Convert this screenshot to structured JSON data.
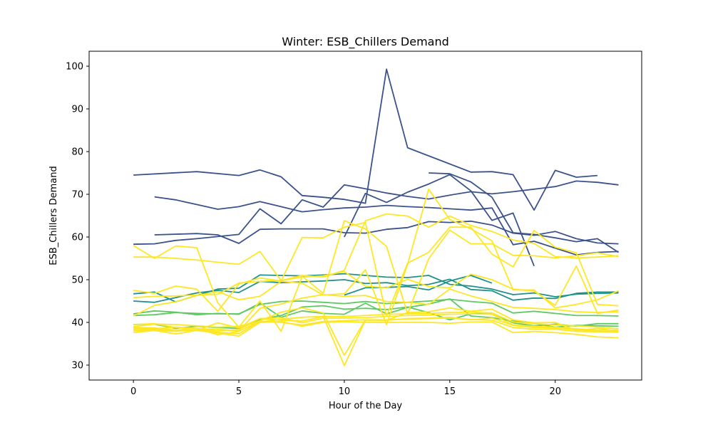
{
  "chart_data": {
    "type": "line",
    "title": "Winter: ESB_Chillers Demand",
    "xlabel": "Hour of the Day",
    "ylabel": "ESB_Chillers Demand",
    "xlim": [
      -2.1,
      24.1
    ],
    "ylim": [
      26.5,
      103.5
    ],
    "xticks": [
      0,
      5,
      10,
      15,
      20
    ],
    "yticks": [
      30,
      40,
      50,
      60,
      70,
      80,
      90,
      100
    ],
    "grid": false,
    "legend": "none",
    "series": [
      {
        "color": "#3b528b",
        "x": [
          0,
          3,
          5,
          6,
          7,
          8,
          9,
          10,
          11,
          12,
          13,
          14,
          15,
          16,
          17,
          18,
          19,
          20,
          21,
          22
        ],
        "values": [
          74.5,
          75.3,
          74.4,
          75.7,
          74.1,
          69.7,
          69.3,
          68.8,
          67.9,
          99.3,
          80.9,
          79.0,
          77.1,
          75.2,
          75.3,
          74.6,
          66.3,
          75.6,
          74.0,
          74.4
        ]
      },
      {
        "color": "#3b528b",
        "x": [
          1,
          2,
          3,
          4,
          5,
          6,
          7,
          8,
          9,
          10,
          11,
          12,
          13,
          14,
          15,
          16,
          17,
          18,
          19,
          20,
          21,
          22,
          23
        ],
        "values": [
          69.4,
          68.7,
          67.6,
          66.5,
          67.1,
          68.3,
          67.1,
          65.9,
          66.4,
          66.8,
          67.0,
          67.4,
          67.1,
          66.9,
          66.6,
          66.3,
          66.8,
          58.2,
          59.0,
          57.4,
          55.8,
          56.4,
          56.6
        ]
      },
      {
        "color": "#3b528b",
        "x": [
          0,
          1,
          2,
          3,
          4,
          5,
          6,
          7,
          8,
          9,
          10,
          11,
          12,
          13,
          14,
          15,
          16,
          17,
          18,
          19,
          20,
          21,
          22,
          23
        ],
        "values": [
          58.3,
          58.4,
          59.2,
          59.6,
          60.1,
          60.6,
          66.6,
          63.1,
          68.7,
          67.0,
          72.2,
          71.3,
          70.3,
          69.5,
          68.9,
          69.8,
          70.6,
          70.1,
          70.6,
          71.2,
          71.8,
          73.1,
          72.8,
          72.2
        ]
      },
      {
        "color": "#3b528b",
        "x": [
          1,
          3,
          4,
          5,
          6,
          7,
          8,
          9,
          10,
          11,
          12,
          13,
          14,
          15,
          16,
          17,
          18,
          19,
          20,
          21,
          22,
          23
        ],
        "values": [
          60.5,
          60.8,
          60.5,
          58.5,
          61.8,
          61.9,
          61.9,
          61.9,
          61.0,
          60.9,
          61.8,
          62.2,
          63.6,
          63.4,
          63.7,
          62.8,
          60.9,
          60.4,
          61.3,
          59.6,
          58.6,
          58.4
        ]
      },
      {
        "color": "#3b528b",
        "x": [
          10,
          11,
          12,
          13,
          14,
          15,
          16,
          17,
          18,
          19
        ],
        "values": [
          60.0,
          70.2,
          68.1,
          70.5,
          72.4,
          74.6,
          70.8,
          63.9,
          65.6,
          53.2
        ]
      },
      {
        "color": "#3b528b",
        "x": [
          14,
          15,
          16,
          17,
          18,
          19,
          20,
          21,
          22,
          23
        ],
        "values": [
          75.0,
          74.8,
          72.9,
          69.3,
          61.0,
          60.6,
          59.8,
          58.9,
          59.6,
          56.4
        ]
      },
      {
        "color": "#21918c",
        "x": [
          0,
          1,
          2,
          3,
          4,
          5,
          6,
          7,
          8,
          9,
          10,
          11,
          12,
          13,
          14,
          15,
          16,
          17,
          18,
          19,
          20,
          21,
          22,
          23
        ],
        "values": [
          46.7,
          47.1,
          44.8,
          46.3,
          47.8,
          48.0,
          51.1,
          51.0,
          50.9,
          51.1,
          51.4,
          51.0,
          50.6,
          50.5,
          51.0,
          48.9,
          48.5,
          47.8,
          46.5,
          46.9,
          46.0,
          46.6,
          46.8,
          46.9
        ]
      },
      {
        "color": "#21918c",
        "x": [
          0,
          1,
          2,
          3,
          4,
          5,
          6,
          7,
          8,
          9,
          10,
          11,
          12,
          13,
          14,
          15,
          16,
          17,
          18,
          19,
          20,
          21,
          22,
          23
        ],
        "values": [
          45.0,
          44.7,
          45.8,
          46.9,
          47.5,
          47.0,
          49.6,
          49.3,
          49.5,
          49.7,
          50.0,
          49.1,
          49.3,
          48.6,
          48.9,
          50.1,
          47.7,
          47.4,
          45.2,
          45.7,
          45.6,
          46.8,
          47.1,
          47.1
        ]
      },
      {
        "color": "#21918c",
        "x": [
          10,
          11,
          12,
          13,
          14,
          15,
          16,
          17
        ],
        "values": [
          46.4,
          48.1,
          48.2,
          48.4,
          47.6,
          49.7,
          51.0,
          49.2
        ]
      },
      {
        "color": "#5ec962",
        "x": [
          0,
          1,
          2,
          3,
          4,
          5,
          6,
          7,
          8,
          9,
          10,
          11,
          12,
          13,
          14,
          15,
          16,
          17,
          18,
          19,
          20,
          21,
          22,
          23
        ],
        "values": [
          41.6,
          41.8,
          42.3,
          42.1,
          42.0,
          42.0,
          44.2,
          44.9,
          45.0,
          44.7,
          44.4,
          44.9,
          44.4,
          44.7,
          45.0,
          45.4,
          44.9,
          44.5,
          42.2,
          42.6,
          42.1,
          41.6,
          41.6,
          41.5
        ]
      },
      {
        "color": "#5ec962",
        "x": [
          0,
          1,
          2,
          3,
          4,
          5,
          6,
          7,
          8,
          9,
          10,
          11,
          12,
          13,
          14,
          15,
          16,
          17,
          18,
          19,
          20,
          21,
          22,
          23
        ],
        "values": [
          42.0,
          42.7,
          42.4,
          41.8,
          42.1,
          41.9,
          44.5,
          41.2,
          42.7,
          42.1,
          41.9,
          44.5,
          42.0,
          43.5,
          44.3,
          45.5,
          41.5,
          41.1,
          40.3,
          39.8,
          38.9,
          39.3,
          39.2,
          39.1
        ]
      },
      {
        "color": "#5ec962",
        "x": [
          0,
          1,
          2,
          3,
          4,
          5,
          6,
          7,
          8,
          9,
          10,
          11,
          12,
          13,
          14,
          15,
          16,
          17,
          18,
          19,
          20,
          21,
          22,
          23
        ],
        "values": [
          39.5,
          39.6,
          38.6,
          39.1,
          38.8,
          38.6,
          40.7,
          41.6,
          43.6,
          43.9,
          43.1,
          43.3,
          43.0,
          43.6,
          42.3,
          40.6,
          42.0,
          42.2,
          39.9,
          39.2,
          39.6,
          39.1,
          39.7,
          39.7
        ]
      },
      {
        "color": "#fde725",
        "x": [
          0,
          1,
          2,
          3,
          4,
          5,
          6,
          7,
          8,
          9,
          10,
          11,
          12,
          13,
          14,
          15,
          16,
          17,
          18,
          19,
          20,
          21,
          22,
          23
        ],
        "values": [
          55.3,
          55.3,
          55.0,
          54.6,
          54.1,
          53.6,
          56.6,
          49.8,
          51.0,
          50.6,
          52.2,
          63.8,
          65.4,
          64.9,
          62.3,
          64.9,
          62.7,
          61.3,
          59.3,
          58.5,
          55.4,
          55.1,
          55.3,
          55.6
        ]
      },
      {
        "color": "#fde725",
        "x": [
          0,
          1,
          2,
          3,
          4,
          5,
          6,
          7,
          8,
          9,
          10,
          11,
          12,
          13,
          14,
          15,
          16,
          17,
          18,
          19,
          20,
          21,
          22,
          23
        ],
        "values": [
          58.0,
          55.0,
          57.9,
          57.5,
          44.6,
          38.9,
          45.0,
          37.9,
          50.8,
          46.8,
          63.8,
          61.9,
          57.8,
          42.0,
          54.9,
          61.6,
          58.4,
          58.4,
          55.7,
          55.6,
          55.1,
          55.6,
          56.3,
          55.4
        ]
      },
      {
        "color": "#fde725",
        "x": [
          0,
          1,
          2,
          3,
          4,
          5,
          6,
          7,
          8,
          9,
          10,
          11,
          12,
          13,
          14,
          15,
          16,
          17,
          18,
          19,
          20,
          21,
          22,
          23
        ],
        "values": [
          47.5,
          46.8,
          48.5,
          47.8,
          42.6,
          49.0,
          50.4,
          49.7,
          59.9,
          59.8,
          62.3,
          63.4,
          41.5,
          53.9,
          56.4,
          62.3,
          62.3,
          56.0,
          53.0,
          61.5,
          57.6,
          56.3,
          44.2,
          43.9
        ]
      },
      {
        "color": "#fde725",
        "x": [
          0,
          1,
          2,
          3,
          4,
          5,
          6,
          7,
          8,
          9,
          10,
          11,
          12,
          13,
          14,
          15,
          16,
          17,
          18,
          19,
          20,
          21,
          22,
          23
        ],
        "values": [
          41.5,
          44.0,
          44.8,
          46.3,
          47.2,
          45.3,
          46.1,
          49.6,
          49.2,
          46.4,
          46.7,
          52.3,
          39.5,
          53.6,
          71.2,
          64.1,
          61.9,
          59.1,
          47.6,
          47.6,
          43.4,
          44.2,
          45.3,
          47.4
        ]
      },
      {
        "color": "#fde725",
        "x": [
          0,
          1,
          2,
          3,
          4,
          5,
          6,
          7,
          8,
          9,
          10,
          11,
          12,
          13,
          14,
          15,
          16,
          17,
          18,
          19,
          20,
          21,
          22,
          23
        ],
        "values": [
          45.8,
          46.1,
          46.2,
          46.4,
          46.6,
          49.2,
          49.6,
          49.8,
          50.6,
          50.9,
          51.9,
          48.5,
          48.1,
          50.1,
          48.4,
          48.1,
          51.3,
          50.0,
          47.8,
          47.3,
          44.0,
          53.2,
          42.1,
          42.9
        ]
      },
      {
        "color": "#fde725",
        "x": [
          0,
          1,
          2,
          3,
          4,
          5,
          6,
          7,
          8,
          9,
          10,
          11,
          12,
          13,
          14,
          15,
          16,
          17,
          18,
          19,
          20,
          21,
          22,
          23
        ],
        "values": [
          39.5,
          39.7,
          38.8,
          38.5,
          38.4,
          38.0,
          43.3,
          44.3,
          45.7,
          46.5,
          46.1,
          46.3,
          44.9,
          44.7,
          44.2,
          47.8,
          46.2,
          44.9,
          43.5,
          43.3,
          43.0,
          42.5,
          42.3,
          42.5
        ]
      },
      {
        "color": "#fde725",
        "x": [
          0,
          1,
          2,
          3,
          4,
          5,
          6,
          7,
          8,
          9,
          10,
          11,
          12,
          13,
          14,
          15,
          16,
          17,
          18,
          19,
          20,
          21,
          22,
          23
        ],
        "values": [
          38.8,
          38.7,
          38.2,
          38.6,
          37.1,
          37.9,
          40.4,
          42.4,
          43.4,
          42.2,
          32.3,
          40.6,
          40.5,
          42.3,
          42.5,
          43.4,
          42.6,
          43.1,
          40.6,
          39.9,
          40.0,
          38.1,
          38.6,
          38.0
        ]
      },
      {
        "color": "#fde725",
        "x": [
          0,
          1,
          2,
          3,
          4,
          5,
          6,
          7,
          8,
          9,
          10,
          11,
          12,
          13,
          14,
          15,
          16,
          17,
          18,
          19,
          20,
          21,
          22,
          23
        ],
        "values": [
          38.3,
          38.3,
          38.2,
          38.1,
          39.9,
          38.7,
          40.9,
          40.5,
          40.3,
          41.4,
          29.9,
          40.5,
          40.5,
          40.9,
          41.0,
          41.2,
          40.6,
          41.0,
          39.3,
          38.8,
          38.7,
          38.3,
          37.9,
          37.9
        ]
      },
      {
        "color": "#fde725",
        "x": [
          0,
          1,
          2,
          3,
          4,
          5,
          6,
          7,
          8,
          9,
          10,
          11,
          12,
          13,
          14,
          15,
          16,
          17,
          18,
          19,
          20,
          21,
          22,
          23
        ],
        "values": [
          38.0,
          38.1,
          37.9,
          38.3,
          37.7,
          37.3,
          40.3,
          40.0,
          39.4,
          40.2,
          40.4,
          40.6,
          40.6,
          40.8,
          40.9,
          41.0,
          40.7,
          40.5,
          38.8,
          38.4,
          38.4,
          37.9,
          37.8,
          37.7
        ]
      },
      {
        "color": "#fde725",
        "x": [
          0,
          1,
          2,
          3,
          4,
          5,
          6,
          7,
          8,
          9,
          10,
          11,
          12,
          13,
          14,
          15,
          16,
          17,
          18,
          19,
          20,
          21,
          22,
          23
        ],
        "values": [
          37.6,
          38.1,
          37.3,
          38.1,
          37.5,
          36.8,
          40.0,
          40.2,
          39.1,
          40.0,
          40.2,
          40.0,
          40.0,
          40.0,
          40.0,
          39.8,
          40.1,
          40.1,
          37.6,
          37.9,
          37.6,
          37.2,
          36.6,
          36.4
        ]
      },
      {
        "color": "#fde725",
        "x": [
          0,
          1,
          2,
          3,
          4,
          5,
          6,
          7,
          8,
          9,
          10,
          11,
          12,
          13,
          14,
          15,
          16,
          17,
          18,
          19,
          20,
          21,
          22,
          23
        ],
        "values": [
          39.0,
          39.6,
          39.5,
          39.2,
          38.9,
          39.1,
          40.1,
          40.7,
          41.2,
          41.4,
          41.4,
          41.6,
          41.9,
          42.0,
          42.1,
          42.3,
          42.4,
          42.2,
          40.1,
          39.7,
          39.4,
          39.2,
          38.9,
          38.5
        ]
      },
      {
        "color": "#fde725",
        "x": [
          0,
          1,
          2,
          3,
          4,
          5,
          6,
          7,
          8,
          9,
          10,
          11,
          12,
          13,
          14,
          15,
          16,
          17,
          18,
          19,
          20,
          21,
          22,
          23
        ],
        "values": [
          38.6,
          38.5,
          38.9,
          38.6,
          38.0,
          38.3,
          40.9,
          41.1,
          39.9,
          41.0,
          41.0,
          41.1,
          41.4,
          41.6,
          41.7,
          41.9,
          42.0,
          41.9,
          39.4,
          39.1,
          38.9,
          38.5,
          38.2,
          38.2
        ]
      }
    ]
  }
}
